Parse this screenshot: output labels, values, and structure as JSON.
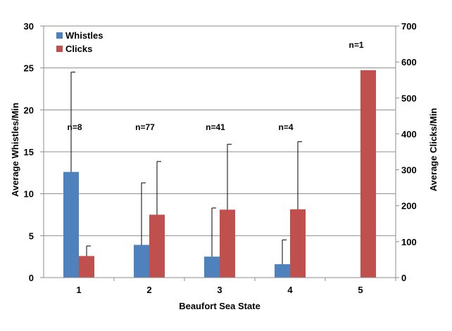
{
  "chart_data": {
    "type": "bar",
    "categories": [
      "1",
      "2",
      "3",
      "4",
      "5"
    ],
    "xlabel": "Beaufort Sea State",
    "ylabel": "Average Whistles/Min",
    "y2label": "Average Clicks/Min",
    "ylim": [
      0,
      30
    ],
    "y_ticks": [
      "0",
      "5",
      "10",
      "15",
      "20",
      "25",
      "30"
    ],
    "y2lim": [
      0,
      700
    ],
    "y2_ticks": [
      "0",
      "100",
      "200",
      "300",
      "400",
      "500",
      "600",
      "700"
    ],
    "grid": true,
    "legend_position": "top-left",
    "series": [
      {
        "name": "Whistles",
        "axis": "left",
        "color": "#4F81BD",
        "values": [
          12.6,
          3.9,
          2.5,
          1.6,
          null
        ],
        "error_upper": [
          24.5,
          11.3,
          8.3,
          4.5,
          null
        ]
      },
      {
        "name": "Clicks",
        "axis": "right",
        "color": "#C0504D",
        "values": [
          60,
          175,
          189,
          190,
          577
        ],
        "error_upper": [
          88,
          323,
          371,
          378,
          577
        ]
      }
    ],
    "annotations": [
      {
        "category": "1",
        "text": "n=8",
        "y": 17.6
      },
      {
        "category": "2",
        "text": "n=77",
        "y": 17.6
      },
      {
        "category": "3",
        "text": "n=41",
        "y": 17.6
      },
      {
        "category": "4",
        "text": "n=4",
        "y": 17.6
      },
      {
        "category": "5",
        "text": "n=1",
        "y": 27.4
      }
    ]
  }
}
